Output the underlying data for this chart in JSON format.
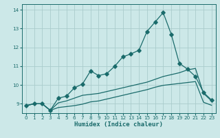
{
  "xlabel": "Humidex (Indice chaleur)",
  "background_color": "#cce8e8",
  "grid_color": "#aacccc",
  "line_color": "#1a6b6b",
  "xlim": [
    -0.5,
    23.5
  ],
  "ylim": [
    8.5,
    14.3
  ],
  "x_ticks": [
    0,
    1,
    2,
    3,
    4,
    5,
    6,
    7,
    8,
    9,
    10,
    11,
    12,
    13,
    14,
    15,
    16,
    17,
    18,
    19,
    20,
    21,
    22,
    23
  ],
  "y_ticks": [
    9,
    10,
    11,
    12,
    13,
    14
  ],
  "line1_x": [
    0,
    1,
    2,
    3,
    4,
    5,
    6,
    7,
    8,
    9,
    10,
    11,
    12,
    13,
    14,
    15,
    16,
    17,
    18,
    19,
    20,
    21,
    22,
    23
  ],
  "line1_y": [
    8.9,
    9.0,
    9.0,
    8.65,
    9.3,
    9.4,
    9.85,
    10.05,
    10.75,
    10.5,
    10.6,
    11.0,
    11.5,
    11.65,
    11.85,
    12.85,
    13.35,
    13.85,
    12.7,
    11.15,
    10.85,
    10.45,
    9.6,
    9.2
  ],
  "line2_x": [
    0,
    1,
    2,
    3,
    4,
    5,
    6,
    7,
    8,
    9,
    10,
    11,
    12,
    13,
    14,
    15,
    16,
    17,
    18,
    19,
    20,
    21,
    22,
    23
  ],
  "line2_y": [
    8.9,
    9.0,
    9.0,
    8.65,
    9.05,
    9.15,
    9.3,
    9.45,
    9.5,
    9.55,
    9.65,
    9.75,
    9.85,
    9.95,
    10.05,
    10.15,
    10.3,
    10.45,
    10.55,
    10.65,
    10.8,
    10.88,
    9.55,
    9.15
  ],
  "line3_x": [
    0,
    1,
    2,
    3,
    4,
    5,
    6,
    7,
    8,
    9,
    10,
    11,
    12,
    13,
    14,
    15,
    16,
    17,
    18,
    19,
    20,
    21,
    22,
    23
  ],
  "line3_y": [
    8.9,
    9.0,
    9.0,
    8.65,
    8.8,
    8.85,
    8.9,
    8.98,
    9.1,
    9.15,
    9.25,
    9.35,
    9.45,
    9.55,
    9.65,
    9.75,
    9.88,
    9.98,
    10.03,
    10.08,
    10.13,
    10.18,
    9.08,
    8.92
  ]
}
